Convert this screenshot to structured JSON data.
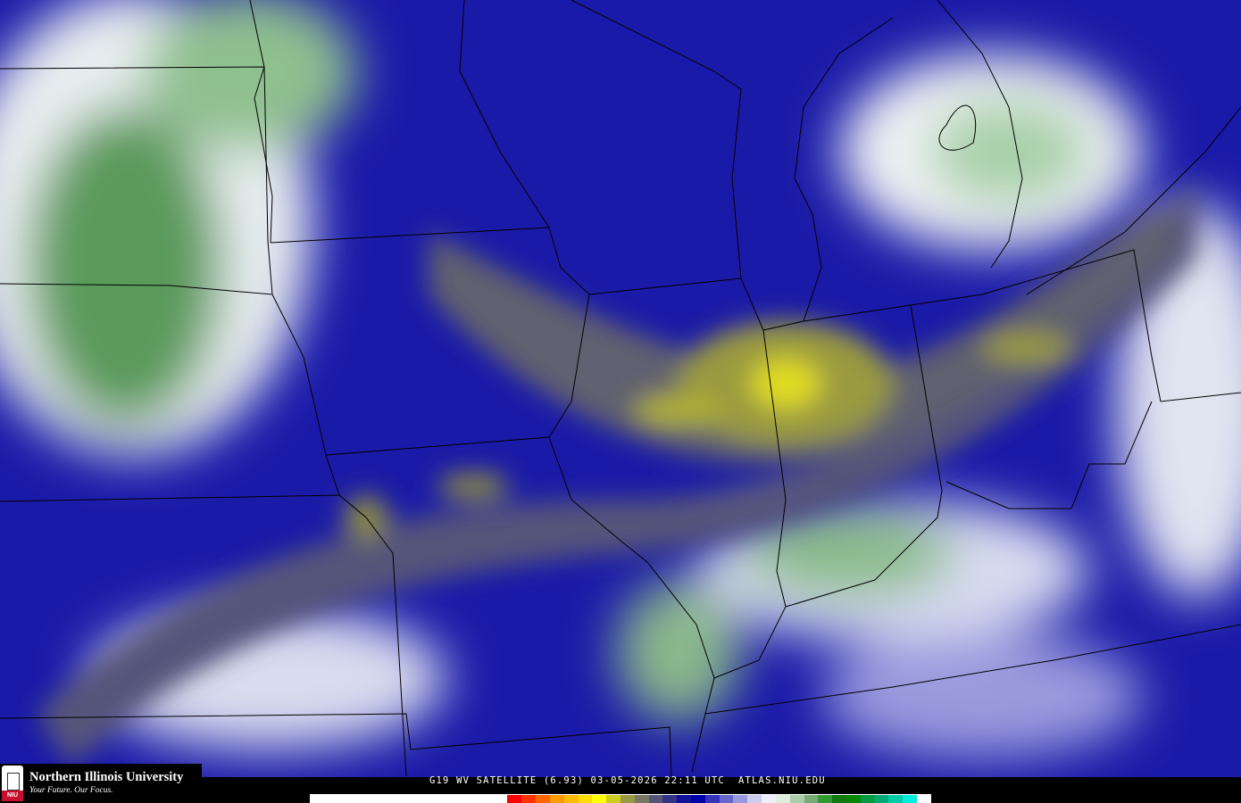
{
  "caption": "G19 WV SATELLITE (6.93) 03-05-2026 22:11 UTC  ATLAS.NIU.EDU",
  "logo": {
    "name": "Northern Illinois University",
    "tagline": "Your Future. Our Focus.",
    "badge": "NIU"
  },
  "colorbar": [
    "#ffffff",
    "#ff0000",
    "#ff3300",
    "#ff6600",
    "#ff9900",
    "#ffbb00",
    "#ffdd00",
    "#ffff00",
    "#cccc22",
    "#999944",
    "#777766",
    "#555577",
    "#333388",
    "#111199",
    "#0000aa",
    "#3333bb",
    "#6666cc",
    "#9999dd",
    "#ccccee",
    "#eeeeff",
    "#ddeedd",
    "#aaccaa",
    "#77aa77",
    "#339933",
    "#117711",
    "#008800",
    "#009944",
    "#00aa77",
    "#00ccaa",
    "#00eedd",
    "#ffffff"
  ]
}
